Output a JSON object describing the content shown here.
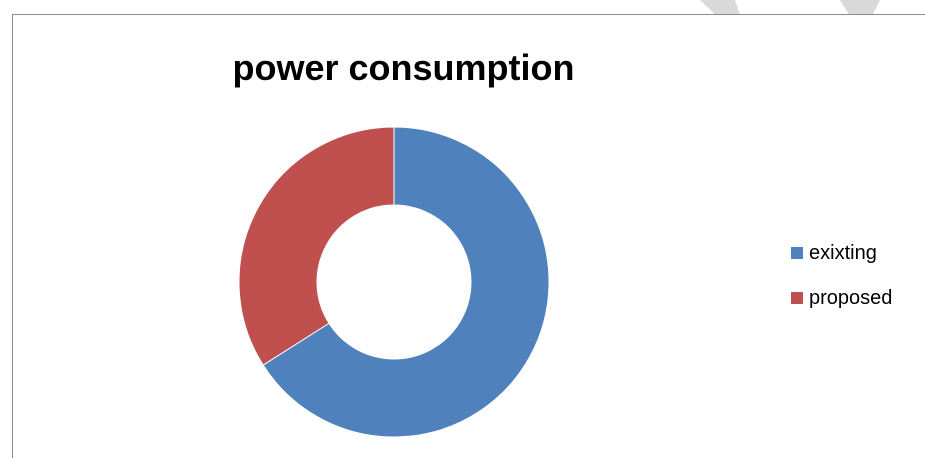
{
  "chart_data": {
    "type": "pie",
    "variant": "doughnut",
    "title": "power consumption",
    "categories": [
      "exixting",
      "proposed"
    ],
    "values": [
      66,
      34
    ],
    "colors": [
      "#4f81bd",
      "#c0504d"
    ],
    "legend_position": "right"
  }
}
